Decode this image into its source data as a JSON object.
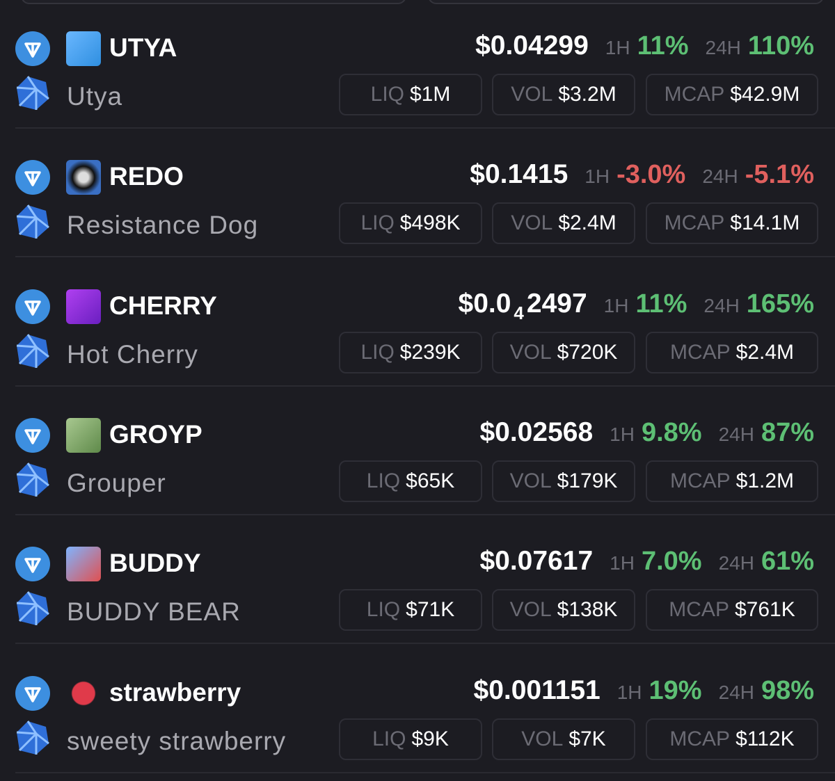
{
  "labels": {
    "h1": "1H",
    "h24": "24H",
    "liq": "LIQ",
    "vol": "VOL",
    "mcap": "MCAP"
  },
  "tokens": [
    {
      "symbol": "UTYA",
      "name": "Utya",
      "price": [
        "$0.04299"
      ],
      "change_1h": "11%",
      "change_24h": "110%",
      "liq": "$1M",
      "vol": "$3.2M",
      "mcap": "$42.9M"
    },
    {
      "symbol": "REDO",
      "name": "Resistance Dog",
      "price": [
        "$0.1415"
      ],
      "change_1h": "-3.0%",
      "change_24h": "-5.1%",
      "liq": "$498K",
      "vol": "$2.4M",
      "mcap": "$14.1M"
    },
    {
      "symbol": "CHERRY",
      "name": "Hot Cherry",
      "price": [
        "$0.0",
        "4",
        "2497"
      ],
      "change_1h": "11%",
      "change_24h": "165%",
      "liq": "$239K",
      "vol": "$720K",
      "mcap": "$2.4M"
    },
    {
      "symbol": "GROYP",
      "name": "Grouper",
      "price": [
        "$0.02568"
      ],
      "change_1h": "9.8%",
      "change_24h": "87%",
      "liq": "$65K",
      "vol": "$179K",
      "mcap": "$1.2M"
    },
    {
      "symbol": "BUDDY",
      "name": "BUDDY BEAR",
      "price": [
        "$0.07617"
      ],
      "change_1h": "7.0%",
      "change_24h": "61%",
      "liq": "$71K",
      "vol": "$138K",
      "mcap": "$761K"
    },
    {
      "symbol": "strawberry",
      "name": "sweety strawberry",
      "price": [
        "$0.001151"
      ],
      "change_1h": "19%",
      "change_24h": "98%",
      "liq": "$9K",
      "vol": "$7K",
      "mcap": "$112K"
    }
  ]
}
